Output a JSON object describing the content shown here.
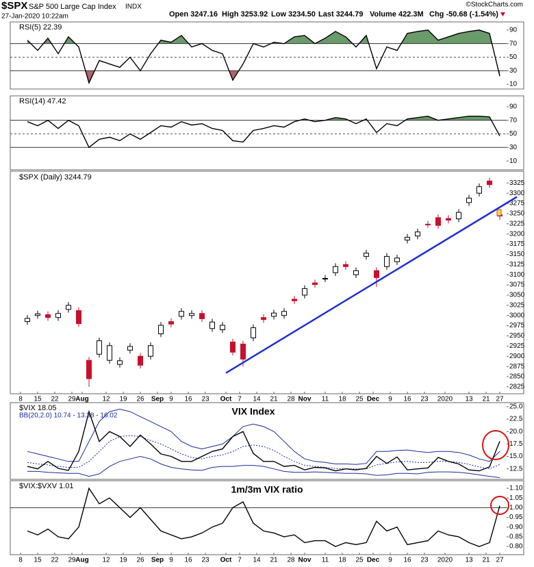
{
  "header": {
    "symbol": "$SPX",
    "name": "S&P 500 Large Cap Index",
    "exchange": "INDX",
    "timestamp": "27-Jan-2020 10:22am",
    "quote": [
      "Open 3247.16",
      "High 3253.92",
      "Low 3234.50",
      "Last 3244.79",
      "Volume 422.3M"
    ],
    "change": "Chg -50.68 (-1.54%)",
    "source": "©StockCharts.com"
  },
  "chart_data": [
    {
      "type": "line",
      "xlim": [
        -3,
        142
      ],
      "ylim": [
        3,
        102
      ],
      "yticks": [
        90,
        70,
        50,
        30,
        10
      ],
      "ref_lines": [
        70,
        30
      ],
      "dashed_lines": [
        50
      ],
      "bands": {
        "upper": 70,
        "lower": 30,
        "upper_color": "#6b9a6b",
        "lower_color": "#b5636f"
      },
      "x": [
        2,
        5,
        8,
        11,
        14,
        17,
        20,
        23,
        26,
        29,
        32,
        35,
        38,
        41,
        44,
        47,
        50,
        53,
        56,
        59,
        62,
        65,
        68,
        71,
        74,
        77,
        80,
        83,
        86,
        89,
        92,
        95,
        98,
        101,
        104,
        107,
        110,
        113,
        116,
        119,
        122,
        125,
        128,
        131,
        134,
        137,
        140
      ],
      "series": [
        {
          "name": "RSI(5) 22.39",
          "color": "#000000",
          "values": [
            75,
            60,
            78,
            55,
            80,
            65,
            12,
            45,
            40,
            35,
            50,
            30,
            55,
            75,
            72,
            82,
            65,
            70,
            60,
            55,
            16,
            40,
            70,
            65,
            72,
            70,
            80,
            82,
            70,
            78,
            88,
            80,
            65,
            82,
            33,
            65,
            60,
            85,
            88,
            90,
            75,
            80,
            85,
            88,
            90,
            85,
            22
          ]
        }
      ]
    },
    {
      "type": "line",
      "xlim": [
        -3,
        142
      ],
      "ylim": [
        -3,
        106
      ],
      "yticks": [
        90,
        70,
        50,
        30,
        10
      ],
      "ref_lines": [
        70,
        30
      ],
      "dashed_lines": [
        50
      ],
      "bands": {
        "upper": 70,
        "lower": 30,
        "upper_color": "#6b9a6b",
        "lower_color": "#b5636f"
      },
      "x": [
        2,
        5,
        8,
        11,
        14,
        17,
        20,
        23,
        26,
        29,
        32,
        35,
        38,
        41,
        44,
        47,
        50,
        53,
        56,
        59,
        62,
        65,
        68,
        71,
        74,
        77,
        80,
        83,
        86,
        89,
        92,
        95,
        98,
        101,
        104,
        107,
        110,
        113,
        116,
        119,
        122,
        125,
        128,
        131,
        134,
        137,
        140
      ],
      "series": [
        {
          "name": "RSI(14) 47.42",
          "color": "#000000",
          "values": [
            68,
            62,
            70,
            58,
            70,
            62,
            30,
            42,
            45,
            40,
            50,
            42,
            52,
            62,
            60,
            68,
            63,
            65,
            58,
            55,
            40,
            38,
            55,
            58,
            62,
            60,
            68,
            72,
            68,
            70,
            74,
            72,
            65,
            72,
            52,
            65,
            62,
            72,
            74,
            76,
            70,
            72,
            74,
            76,
            76,
            75,
            47
          ]
        }
      ]
    },
    {
      "type": "candlestick",
      "name": "$SPX (Daily) 3244.79",
      "up_color": "#000000",
      "down_color": "#c8102e",
      "xlim": [
        -3,
        142
      ],
      "ylim": [
        2808,
        3354
      ],
      "yticks": [
        3325,
        3300,
        3275,
        3250,
        3225,
        3200,
        3175,
        3150,
        3125,
        3100,
        3075,
        3050,
        3025,
        3000,
        2975,
        2950,
        2925,
        2900,
        2875,
        2850,
        2825
      ],
      "xticks": [
        {
          "value": 0,
          "label": "8"
        },
        {
          "value": 5,
          "label": "15"
        },
        {
          "value": 10,
          "label": "22"
        },
        {
          "value": 15,
          "label": "29"
        },
        {
          "value": 18,
          "label": "Aug"
        },
        {
          "value": 25,
          "label": "12"
        },
        {
          "value": 30,
          "label": "19"
        },
        {
          "value": 35,
          "label": "26"
        },
        {
          "value": 40,
          "label": "Sep"
        },
        {
          "value": 44,
          "label": "9"
        },
        {
          "value": 49,
          "label": "16"
        },
        {
          "value": 54,
          "label": "23"
        },
        {
          "value": 60,
          "label": "Oct"
        },
        {
          "value": 64,
          "label": "7"
        },
        {
          "value": 69,
          "label": "14"
        },
        {
          "value": 74,
          "label": "21"
        },
        {
          "value": 79,
          "label": "28"
        },
        {
          "value": 83,
          "label": "Nov"
        },
        {
          "value": 89,
          "label": "11"
        },
        {
          "value": 94,
          "label": "18"
        },
        {
          "value": 99,
          "label": "25"
        },
        {
          "value": 103,
          "label": "Dec"
        },
        {
          "value": 108,
          "label": "9"
        },
        {
          "value": 113,
          "label": "16"
        },
        {
          "value": 118,
          "label": "23"
        },
        {
          "value": 124,
          "label": "2020"
        },
        {
          "value": 131,
          "label": "13"
        },
        {
          "value": 136,
          "label": "21"
        },
        {
          "value": 140,
          "label": "27"
        }
      ],
      "x": [
        2,
        5,
        8,
        11,
        14,
        17,
        20,
        23,
        26,
        29,
        32,
        35,
        38,
        41,
        44,
        47,
        50,
        53,
        56,
        59,
        62,
        65,
        68,
        71,
        74,
        77,
        80,
        83,
        86,
        89,
        92,
        95,
        98,
        101,
        104,
        107,
        110,
        113,
        116,
        119,
        122,
        125,
        128,
        131,
        134,
        137,
        140
      ],
      "open": [
        2985,
        3000,
        3002,
        2995,
        3015,
        3012,
        2890,
        2905,
        2890,
        2880,
        2915,
        2900,
        2900,
        2955,
        2985,
        2998,
        3000,
        3005,
        2968,
        2965,
        2935,
        2930,
        2945,
        2995,
        2998,
        3000,
        3040,
        3050,
        3080,
        3090,
        3105,
        3125,
        3100,
        3145,
        3110,
        3120,
        3132,
        3185,
        3195,
        3224,
        3240,
        3238,
        3237,
        3277,
        3300,
        3330,
        3247
      ],
      "high": [
        3001,
        3012,
        3010,
        3013,
        3033,
        3020,
        2898,
        2946,
        2934,
        2897,
        2932,
        2908,
        2934,
        2984,
        2993,
        3018,
        3013,
        3013,
        2992,
        2984,
        2943,
        2938,
        2978,
        3003,
        3014,
        3018,
        3048,
        3074,
        3088,
        3099,
        3128,
        3133,
        3118,
        3161,
        3118,
        3153,
        3149,
        3200,
        3213,
        3232,
        3248,
        3246,
        3261,
        3296,
        3324,
        3338,
        3254
      ],
      "low": [
        2977,
        2992,
        2987,
        2987,
        3007,
        2972,
        2825,
        2897,
        2882,
        2872,
        2907,
        2870,
        2892,
        2947,
        2971,
        2990,
        2992,
        2984,
        2960,
        2957,
        2902,
        2875,
        2937,
        2982,
        2990,
        2992,
        3028,
        3042,
        3068,
        3082,
        3097,
        3112,
        3092,
        3137,
        3070,
        3112,
        3124,
        3177,
        3187,
        3215,
        3213,
        3226,
        3229,
        3269,
        3292,
        3313,
        3234
      ],
      "close": [
        2993,
        3004,
        2995,
        3005,
        3025,
        2980,
        2845,
        2938,
        2926,
        2889,
        2924,
        2878,
        2926,
        2976,
        2979,
        3010,
        3005,
        2992,
        2984,
        2976,
        2910,
        2893,
        2970,
        2990,
        3006,
        3010,
        3036,
        3066,
        3076,
        3091,
        3120,
        3120,
        3110,
        3153,
        3093,
        3145,
        3141,
        3192,
        3205,
        3223,
        3221,
        3234,
        3253,
        3288,
        3316,
        3321,
        3244
      ],
      "trend_line": {
        "x": [
          60,
          145
        ],
        "y": [
          2859,
          3291
        ],
        "color": "#1f2fd0"
      }
    },
    {
      "type": "line",
      "annotation": "VIX Index",
      "xlim": [
        -3,
        142
      ],
      "ylim": [
        10.4,
        25.8
      ],
      "yticks": [
        {
          "value": 25,
          "label": "25.0"
        },
        22.5,
        {
          "value": 20,
          "label": "20.0"
        },
        17.5,
        {
          "value": 15,
          "label": "15.0"
        },
        12.5
      ],
      "x": [
        2,
        5,
        8,
        11,
        14,
        17,
        20,
        23,
        26,
        29,
        32,
        35,
        38,
        41,
        44,
        47,
        50,
        53,
        56,
        59,
        62,
        65,
        68,
        71,
        74,
        77,
        80,
        83,
        86,
        89,
        92,
        95,
        98,
        101,
        104,
        107,
        110,
        113,
        116,
        119,
        122,
        125,
        128,
        131,
        134,
        137,
        140
      ],
      "series": [
        {
          "name": "$VIX 18.05",
          "color": "#000000",
          "values": [
            13,
            12.5,
            14,
            12.6,
            12.2,
            16,
            24,
            18,
            20,
            19,
            17,
            19.3,
            17.5,
            15.5,
            15,
            14,
            14,
            15,
            16,
            16.5,
            19,
            20,
            15.6,
            14,
            14,
            13,
            13.2,
            12.3,
            12.8,
            12.7,
            12.1,
            12.5,
            12.3,
            12.6,
            15,
            13.6,
            14.9,
            12.3,
            12.5,
            12.7,
            14.8,
            14,
            13.5,
            12.3,
            12.1,
            12.9,
            18.05
          ]
        }
      ],
      "bollinger": {
        "name": "BB(20,2.0) 10.74 - 13.38 - 16.02",
        "color": "#1a2a9a",
        "upper": [
          16,
          15.5,
          15,
          14.5,
          14,
          14,
          18,
          22,
          24,
          24.5,
          24,
          23,
          22,
          21,
          20,
          18,
          17,
          16.5,
          17,
          17.5,
          19,
          21,
          21.5,
          21,
          20,
          18,
          16,
          14.5,
          14,
          13.8,
          13.5,
          13.5,
          13.4,
          13.6,
          16,
          16,
          16.2,
          16.3,
          16,
          15.8,
          16,
          16,
          15.8,
          15.3,
          14.5,
          14,
          16.02
        ],
        "middle": [
          13.8,
          13.5,
          13.3,
          13,
          12.8,
          12.8,
          14,
          16,
          18,
          19,
          19.2,
          19,
          18.2,
          17.5,
          16.5,
          15.5,
          14.8,
          14.5,
          15,
          15.3,
          16,
          17,
          17.3,
          17,
          16.2,
          15,
          14,
          13.2,
          13,
          12.8,
          12.6,
          12.5,
          12.5,
          12.5,
          13.3,
          13.6,
          13.9,
          14,
          13.8,
          13.8,
          14,
          14,
          13.8,
          13.4,
          12.9,
          12.5,
          13.38
        ],
        "lower": [
          12,
          12,
          11.8,
          11.7,
          11.6,
          11.6,
          11,
          11.5,
          13,
          14,
          14.5,
          15,
          14.5,
          13.5,
          12.8,
          12.5,
          12.3,
          12.2,
          12.8,
          13,
          13,
          13.2,
          13.2,
          13,
          12.5,
          12,
          11.8,
          11.8,
          11.9,
          11.8,
          11.7,
          11.6,
          11.6,
          11.5,
          11.2,
          11.3,
          11.6,
          11.6,
          11.5,
          11.8,
          11.9,
          11.9,
          11.8,
          11.6,
          11.3,
          11,
          10.74
        ]
      }
    },
    {
      "type": "line",
      "annotation": "1m/3m VIX ratio",
      "xlim": [
        -3,
        142
      ],
      "ylim": [
        0.758,
        1.139
      ],
      "yticks": [
        {
          "value": 1.1,
          "label": "1.10"
        },
        1.05,
        {
          "value": 1,
          "label": "1.00"
        },
        0.95,
        {
          "value": 0.9,
          "label": "0.90"
        },
        0.85,
        {
          "value": 0.8,
          "label": "0.80"
        }
      ],
      "ref_lines": [
        1
      ],
      "xticks": [
        {
          "value": 0,
          "label": "8"
        },
        {
          "value": 5,
          "label": "15"
        },
        {
          "value": 10,
          "label": "22"
        },
        {
          "value": 15,
          "label": "29"
        },
        {
          "value": 18,
          "label": "Aug"
        },
        {
          "value": 25,
          "label": "12"
        },
        {
          "value": 30,
          "label": "19"
        },
        {
          "value": 35,
          "label": "26"
        },
        {
          "value": 40,
          "label": "Sep"
        },
        {
          "value": 44,
          "label": "9"
        },
        {
          "value": 49,
          "label": "16"
        },
        {
          "value": 54,
          "label": "23"
        },
        {
          "value": 60,
          "label": "Oct"
        },
        {
          "value": 64,
          "label": "7"
        },
        {
          "value": 69,
          "label": "14"
        },
        {
          "value": 74,
          "label": "21"
        },
        {
          "value": 79,
          "label": "28"
        },
        {
          "value": 83,
          "label": "Nov"
        },
        {
          "value": 89,
          "label": "11"
        },
        {
          "value": 94,
          "label": "18"
        },
        {
          "value": 99,
          "label": "25"
        },
        {
          "value": 103,
          "label": "Dec"
        },
        {
          "value": 108,
          "label": "9"
        },
        {
          "value": 113,
          "label": "16"
        },
        {
          "value": 118,
          "label": "23"
        },
        {
          "value": 124,
          "label": "2020"
        },
        {
          "value": 131,
          "label": "13"
        },
        {
          "value": 136,
          "label": "21"
        },
        {
          "value": 140,
          "label": "27"
        }
      ],
      "x": [
        2,
        5,
        8,
        11,
        14,
        17,
        20,
        23,
        26,
        29,
        32,
        35,
        38,
        41,
        44,
        47,
        50,
        53,
        56,
        59,
        62,
        65,
        68,
        71,
        74,
        77,
        80,
        83,
        86,
        89,
        92,
        95,
        98,
        101,
        104,
        107,
        110,
        113,
        116,
        119,
        122,
        125,
        128,
        131,
        134,
        137,
        140
      ],
      "series": [
        {
          "name": "$VIX:$VXV 1.01",
          "color": "#000000",
          "values": [
            0.88,
            0.86,
            0.89,
            0.85,
            0.84,
            0.9,
            1.1,
            1.02,
            1.05,
            1,
            0.95,
            1,
            0.94,
            0.88,
            0.86,
            0.84,
            0.85,
            0.87,
            0.9,
            0.92,
            1,
            1.03,
            0.92,
            0.88,
            0.87,
            0.85,
            0.86,
            0.82,
            0.83,
            0.83,
            0.8,
            0.82,
            0.81,
            0.82,
            0.93,
            0.88,
            0.9,
            0.81,
            0.82,
            0.83,
            0.88,
            0.86,
            0.85,
            0.82,
            0.8,
            0.82,
            1.01
          ]
        }
      ]
    }
  ]
}
